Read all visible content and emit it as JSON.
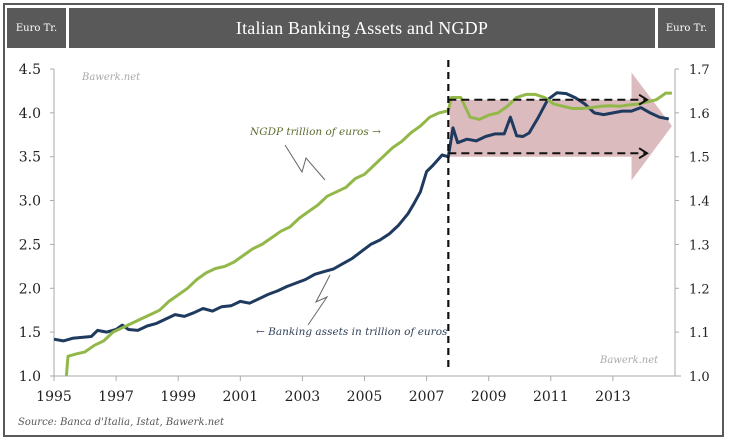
{
  "header": {
    "left_unit": "Euro Tr.",
    "title": "Italian Banking Assets and NGDP",
    "right_unit": "Euro Tr."
  },
  "source": "Source: Banca d'Italia, Istat, Bawerk.net",
  "watermarks": [
    "Bawerk.net",
    "Bawerk.net"
  ],
  "colors": {
    "banking": "#1f3a5f",
    "ngdp": "#93b84a",
    "arrow": "#d8b4b8",
    "header": "#595959"
  },
  "chart_data": {
    "type": "line",
    "title": "Italian Banking Assets and NGDP",
    "xlabel": "",
    "ylabel": "Euro Tr.",
    "y2label": "Euro Tr.",
    "xlim": [
      1995,
      2015
    ],
    "ylim": [
      1.0,
      4.5
    ],
    "y2lim": [
      1.0,
      1.7
    ],
    "xticks": [
      "1995",
      "1997",
      "1999",
      "2001",
      "2003",
      "2005",
      "2007",
      "2009",
      "2011",
      "2013"
    ],
    "yticks": [
      "1.0",
      "1.5",
      "2.0",
      "2.5",
      "3.0",
      "3.5",
      "4.0",
      "4.5"
    ],
    "y2ticks": [
      "1.0",
      "1.1",
      "1.2",
      "1.3",
      "1.4",
      "1.5",
      "1.6",
      "1.7"
    ],
    "grid": false,
    "annotations": {
      "ngdp_label": "NGDP trillion of euros →",
      "banking_label": "← Banking assets in trillion of euros",
      "crisis_line_x": 2007.7
    },
    "series": [
      {
        "name": "Banking assets in trillion of euros",
        "axis": "left",
        "x": [
          1995.0,
          1995.3,
          1995.6,
          1995.9,
          1996.2,
          1996.4,
          1996.7,
          1997.0,
          1997.2,
          1997.4,
          1997.7,
          1998.0,
          1998.3,
          1998.6,
          1998.9,
          1999.2,
          1999.5,
          1999.8,
          2000.1,
          2000.4,
          2000.7,
          2001.0,
          2001.3,
          2001.6,
          2001.9,
          2002.2,
          2002.5,
          2002.8,
          2003.1,
          2003.4,
          2003.7,
          2004.0,
          2004.3,
          2004.6,
          2004.9,
          2005.2,
          2005.5,
          2005.8,
          2006.1,
          2006.4,
          2006.6,
          2006.8,
          2007.0,
          2007.2,
          2007.5,
          2007.7,
          2007.85,
          2008.0,
          2008.3,
          2008.6,
          2008.9,
          2009.2,
          2009.5,
          2009.7,
          2009.9,
          2010.1,
          2010.3,
          2010.6,
          2010.9,
          2011.2,
          2011.5,
          2011.8,
          2012.1,
          2012.4,
          2012.7,
          2013.0,
          2013.3,
          2013.6,
          2013.9,
          2014.2,
          2014.5,
          2014.8
        ],
        "values": [
          1.42,
          1.4,
          1.43,
          1.44,
          1.45,
          1.52,
          1.5,
          1.53,
          1.58,
          1.53,
          1.52,
          1.57,
          1.6,
          1.65,
          1.7,
          1.68,
          1.72,
          1.77,
          1.74,
          1.79,
          1.8,
          1.85,
          1.83,
          1.88,
          1.93,
          1.97,
          2.02,
          2.06,
          2.1,
          2.16,
          2.19,
          2.22,
          2.28,
          2.34,
          2.42,
          2.5,
          2.55,
          2.62,
          2.72,
          2.85,
          2.97,
          3.1,
          3.33,
          3.4,
          3.52,
          3.5,
          3.83,
          3.66,
          3.7,
          3.68,
          3.73,
          3.76,
          3.76,
          3.95,
          3.74,
          3.73,
          3.77,
          3.95,
          4.15,
          4.23,
          4.22,
          4.17,
          4.1,
          4.0,
          3.98,
          4.0,
          4.02,
          4.02,
          4.06,
          4.0,
          3.95,
          3.93
        ]
      },
      {
        "name": "NGDP trillion of euros",
        "axis": "right",
        "x": [
          1995.4,
          1995.45,
          1995.7,
          1996.0,
          1996.3,
          1996.6,
          1996.9,
          1997.2,
          1997.5,
          1997.8,
          1998.1,
          1998.4,
          1998.7,
          1999.0,
          1999.3,
          1999.6,
          1999.9,
          2000.2,
          2000.5,
          2000.8,
          2001.1,
          2001.4,
          2001.7,
          2002.0,
          2002.3,
          2002.6,
          2002.9,
          2003.2,
          2003.5,
          2003.8,
          2004.1,
          2004.4,
          2004.7,
          2005.0,
          2005.3,
          2005.6,
          2005.9,
          2006.2,
          2006.5,
          2006.8,
          2007.1,
          2007.4,
          2007.7,
          2007.8,
          2008.1,
          2008.4,
          2008.7,
          2009.0,
          2009.3,
          2009.6,
          2009.9,
          2010.2,
          2010.5,
          2010.8,
          2011.1,
          2011.4,
          2011.7,
          2012.0,
          2012.3,
          2012.6,
          2012.9,
          2013.2,
          2013.5,
          2013.8,
          2014.1,
          2014.4,
          2014.7,
          2014.9
        ],
        "values": [
          1.0,
          1.045,
          1.05,
          1.055,
          1.07,
          1.08,
          1.1,
          1.11,
          1.12,
          1.13,
          1.14,
          1.15,
          1.17,
          1.185,
          1.2,
          1.22,
          1.235,
          1.245,
          1.25,
          1.26,
          1.275,
          1.29,
          1.3,
          1.315,
          1.33,
          1.34,
          1.36,
          1.375,
          1.39,
          1.41,
          1.42,
          1.43,
          1.45,
          1.46,
          1.48,
          1.5,
          1.52,
          1.535,
          1.555,
          1.57,
          1.59,
          1.6,
          1.605,
          1.635,
          1.635,
          1.59,
          1.585,
          1.595,
          1.6,
          1.615,
          1.635,
          1.642,
          1.642,
          1.635,
          1.62,
          1.615,
          1.61,
          1.61,
          1.612,
          1.615,
          1.616,
          1.615,
          1.618,
          1.62,
          1.625,
          1.63,
          1.645,
          1.645
        ]
      }
    ]
  }
}
